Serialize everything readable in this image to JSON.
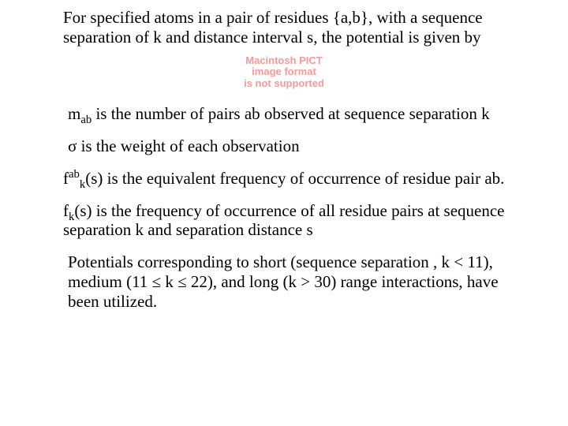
{
  "text_color": "#000000",
  "background_color": "#ffffff",
  "watermark_color": "#f39a9a",
  "font_family": "Times New Roman",
  "font_size_pt": 16,
  "paragraphs": {
    "p1": "For specified atoms in a pair of residues {a,b}, with a sequence separation of k and distance interval  s, the potential is given by",
    "wm_l1": "Macintosh PICT",
    "wm_l2": "image format",
    "wm_l3": "is not supported",
    "p2_pre": " m",
    "p2_sub": "ab",
    "p2_post": " is the number of pairs ab observed at sequence separation k",
    "p3_pre": " ",
    "p3_sigma": "σ",
    "p3_post": " is the weight of each observation",
    "p4_f": "f",
    "p4_sup": "ab",
    "p4_sub": "k",
    "p4_post": "(s) is the equivalent frequency of occurrence of residue pair ab.",
    "p5_f": "f",
    "p5_sub": "k",
    "p5_post": "(s) is the frequency of occurrence of all residue pairs at sequence separation k and separation distance s",
    "p6": " Potentials corresponding to short (sequence separation , k < 11), medium (11 ≤ k ≤ 22), and long (k > 30) range interactions,  have been utilized."
  }
}
